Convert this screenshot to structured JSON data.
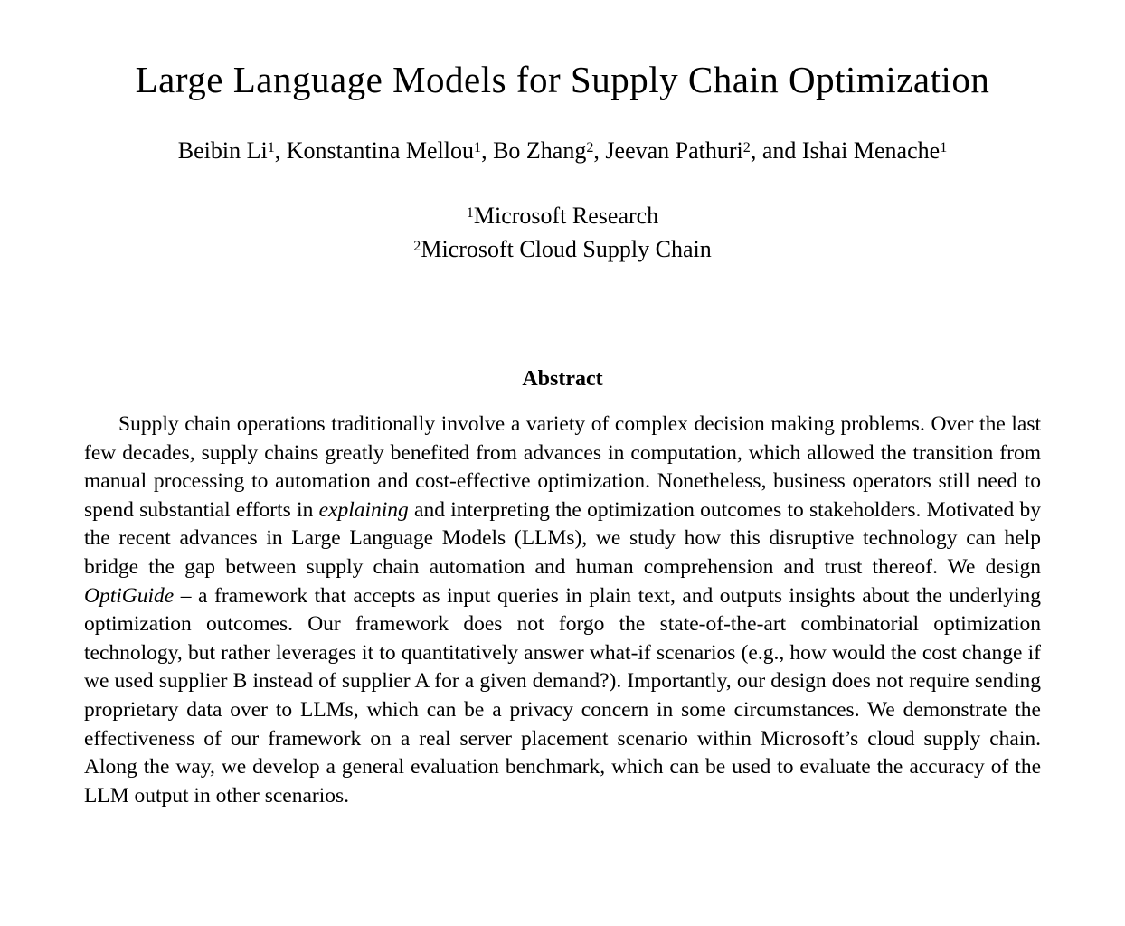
{
  "paper": {
    "title": "Large Language Models for Supply Chain Optimization",
    "authors": [
      {
        "name": "Beibin Li",
        "sup": "1",
        "sep": ", "
      },
      {
        "name": "Konstantina Mellou",
        "sup": "1",
        "sep": ", "
      },
      {
        "name": "Bo Zhang",
        "sup": "2",
        "sep": ", "
      },
      {
        "name": "Jeevan Pathuri",
        "sup": "2",
        "sep": ", and "
      },
      {
        "name": "Ishai Menache",
        "sup": "1",
        "sep": ""
      }
    ],
    "affiliations": [
      {
        "sup": "1",
        "name": "Microsoft Research"
      },
      {
        "sup": "2",
        "name": "Microsoft Cloud Supply Chain"
      }
    ],
    "abstract": {
      "heading": "Abstract",
      "s1": "Supply chain operations traditionally involve a variety of complex decision making problems. Over the last few decades, supply chains greatly benefited from advances in computation, which allowed the transition from manual processing to automation and cost-effective optimization. Nonetheless, business operators still need to spend substantial efforts in ",
      "s2_italic": "explaining",
      "s3": " and interpreting the optimization outcomes to stakeholders. Motivated by the recent advances in Large Language Models (LLMs), we study how this disruptive technology can help bridge the gap between supply chain automation and human comprehension and trust thereof. We design ",
      "s4_italic": "OptiGuide",
      "s5": " – a framework that accepts as input queries in plain text, and outputs insights about the underlying optimization outcomes. Our framework does not forgo the state-of-the-art combinatorial optimization technology, but rather leverages it to quantitatively answer what-if scenarios (e.g., how would the cost change if we used supplier B instead of supplier A for a given demand?). Importantly, our design does not require sending proprietary data over to LLMs, which can be a privacy concern in some circumstances. We demonstrate the effectiveness of our framework on a real server placement scenario within Microsoft’s cloud supply chain. Along the way, we develop a general evaluation benchmark, which can be used to evaluate the accuracy of the LLM output in other scenarios."
    }
  },
  "colors": {
    "page_bg": "#ffffff",
    "text": "#000000"
  }
}
